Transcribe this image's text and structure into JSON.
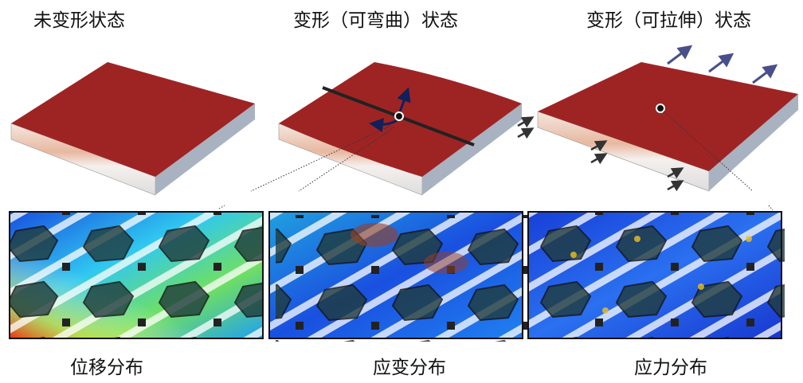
{
  "titles": {
    "undeformed": "未变形状态",
    "bending": "变形（可弯曲）状态",
    "stretching": "变形（可拉伸）状态"
  },
  "captions": {
    "displacement": "位移分布",
    "strain": "应变分布",
    "stress": "应力分布"
  },
  "colors": {
    "surface": "#9e2424",
    "arrow": "#4a4f8a",
    "heat_low": "#1030d0",
    "heat_mid": "#30c0f0",
    "heat_high": "#e03010"
  }
}
